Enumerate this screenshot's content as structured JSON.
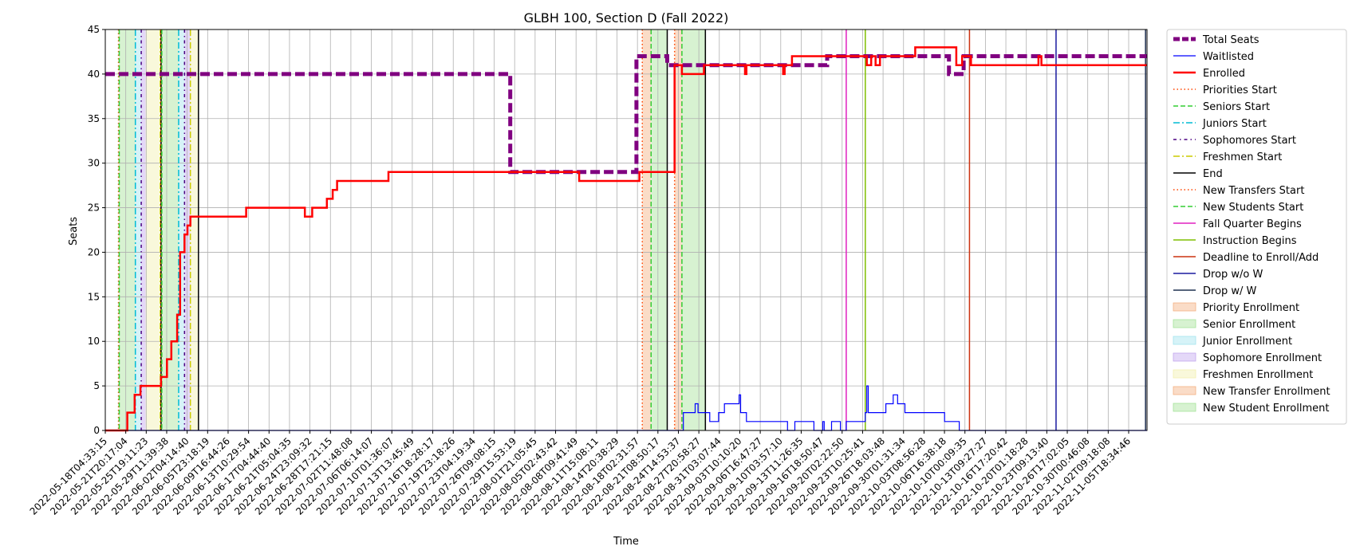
{
  "chart_data": {
    "type": "line",
    "title": "GLBH 100, Section D (Fall 2022)",
    "xlabel": "Time",
    "ylabel": "Seats",
    "ylim": [
      0,
      45
    ],
    "yticks": [
      0,
      5,
      10,
      15,
      20,
      25,
      30,
      35,
      40,
      45
    ],
    "xlim": [
      "2022-05-18T04:33:15",
      "2022-11-08T04:00:00"
    ],
    "grid": true,
    "legend_position": "outside-right",
    "xtick_labels": [
      "2022-05-18T04:33:15",
      "2022-05-21T20:17:04",
      "2022-05-25T19:11:23",
      "2022-05-29T11:39:38",
      "2022-06-02T04:14:40",
      "2022-06-05T23:18:19",
      "2022-06-09T16:44:26",
      "2022-06-13T10:29:54",
      "2022-06-17T04:44:40",
      "2022-06-21T05:04:35",
      "2022-06-24T23:09:32",
      "2022-06-28T17:21:15",
      "2022-07-02T11:48:08",
      "2022-07-06T06:14:07",
      "2022-07-10T01:36:07",
      "2022-07-13T13:45:49",
      "2022-07-16T18:28:17",
      "2022-07-19T23:18:26",
      "2022-07-23T04:19:34",
      "2022-07-26T09:08:15",
      "2022-07-29T15:53:19",
      "2022-08-01T21:05:45",
      "2022-08-05T02:43:42",
      "2022-08-08T09:41:49",
      "2022-08-11T15:08:11",
      "2022-08-14T20:38:29",
      "2022-08-18T02:31:57",
      "2022-08-21T08:50:17",
      "2022-08-24T14:53:37",
      "2022-08-27T20:58:27",
      "2022-08-31T03:07:44",
      "2022-09-03T10:10:20",
      "2022-09-06T16:47:27",
      "2022-09-10T03:57:10",
      "2022-09-13T11:26:35",
      "2022-09-16T18:50:47",
      "2022-09-20T02:22:50",
      "2022-09-23T10:25:41",
      "2022-09-26T18:03:48",
      "2022-09-30T01:31:34",
      "2022-10-03T08:56:28",
      "2022-10-06T16:38:18",
      "2022-10-10T00:09:35",
      "2022-10-13T09:27:27",
      "2022-10-16T17:20:42",
      "2022-10-20T01:18:28",
      "2022-10-23T09:13:40",
      "2022-10-26T17:02:05",
      "2022-10-30T00:46:08",
      "2022-11-02T09:18:08",
      "2022-11-05T18:34:46"
    ],
    "series": [
      {
        "name": "Total Seats",
        "color": "#800080",
        "style": "dashed-thick",
        "points": [
          [
            0,
            40
          ],
          [
            27.6,
            40
          ],
          [
            27.6,
            29
          ],
          [
            36.2,
            29
          ],
          [
            36.2,
            42
          ],
          [
            38.3,
            42
          ],
          [
            38.3,
            41
          ],
          [
            49.2,
            41
          ],
          [
            49.2,
            42
          ],
          [
            57.5,
            42
          ],
          [
            57.5,
            40
          ],
          [
            58.5,
            40
          ],
          [
            58.5,
            42
          ],
          [
            71,
            42
          ]
        ]
      },
      {
        "name": "Waitlisted",
        "color": "#0000ff",
        "style": "solid-thin",
        "points": [
          [
            0,
            0
          ],
          [
            39.4,
            0
          ],
          [
            39.4,
            2
          ],
          [
            40.2,
            2
          ],
          [
            40.2,
            3
          ],
          [
            40.4,
            3
          ],
          [
            40.4,
            2
          ],
          [
            41.2,
            2
          ],
          [
            41.2,
            1
          ],
          [
            41.8,
            1
          ],
          [
            41.8,
            2
          ],
          [
            42.2,
            2
          ],
          [
            42.2,
            3
          ],
          [
            43.2,
            3
          ],
          [
            43.2,
            4
          ],
          [
            43.3,
            4
          ],
          [
            43.3,
            2
          ],
          [
            43.7,
            2
          ],
          [
            43.7,
            1
          ],
          [
            46.5,
            1
          ],
          [
            46.5,
            0
          ],
          [
            47,
            0
          ],
          [
            47,
            1
          ],
          [
            48.3,
            1
          ],
          [
            48.3,
            0
          ],
          [
            48.9,
            0
          ],
          [
            48.9,
            1
          ],
          [
            49,
            1
          ],
          [
            49,
            0
          ],
          [
            49.5,
            0
          ],
          [
            49.5,
            1
          ],
          [
            50.1,
            1
          ],
          [
            50.1,
            0
          ],
          [
            50.5,
            0
          ],
          [
            50.5,
            1
          ],
          [
            51.8,
            1
          ],
          [
            51.8,
            2
          ],
          [
            51.9,
            2
          ],
          [
            51.9,
            5
          ],
          [
            52.0,
            5
          ],
          [
            52.0,
            2
          ],
          [
            53.2,
            2
          ],
          [
            53.2,
            3
          ],
          [
            53.7,
            3
          ],
          [
            53.7,
            4
          ],
          [
            54,
            4
          ],
          [
            54,
            3
          ],
          [
            54.5,
            3
          ],
          [
            54.5,
            2
          ],
          [
            57.2,
            2
          ],
          [
            57.2,
            1
          ],
          [
            58.2,
            1
          ],
          [
            58.2,
            0
          ],
          [
            71,
            0
          ]
        ]
      },
      {
        "name": "Enrolled",
        "color": "#ff0000",
        "style": "solid-thick",
        "points": [
          [
            0,
            0
          ],
          [
            1.5,
            0
          ],
          [
            1.5,
            2
          ],
          [
            2.0,
            2
          ],
          [
            2.0,
            4
          ],
          [
            2.4,
            4
          ],
          [
            2.4,
            5
          ],
          [
            3.8,
            5
          ],
          [
            3.8,
            6
          ],
          [
            4.2,
            6
          ],
          [
            4.2,
            8
          ],
          [
            4.5,
            8
          ],
          [
            4.5,
            10
          ],
          [
            4.9,
            10
          ],
          [
            4.9,
            13
          ],
          [
            5.1,
            13
          ],
          [
            5.1,
            20
          ],
          [
            5.4,
            20
          ],
          [
            5.4,
            22
          ],
          [
            5.6,
            22
          ],
          [
            5.6,
            23
          ],
          [
            5.8,
            23
          ],
          [
            5.8,
            24
          ],
          [
            9.6,
            24
          ],
          [
            9.6,
            25
          ],
          [
            13.6,
            25
          ],
          [
            13.6,
            24
          ],
          [
            14.1,
            24
          ],
          [
            14.1,
            25
          ],
          [
            15.1,
            25
          ],
          [
            15.1,
            26
          ],
          [
            15.5,
            26
          ],
          [
            15.5,
            27
          ],
          [
            15.8,
            27
          ],
          [
            15.8,
            28
          ],
          [
            19.3,
            28
          ],
          [
            19.3,
            29
          ],
          [
            32.3,
            29
          ],
          [
            32.3,
            28
          ],
          [
            36.4,
            28
          ],
          [
            36.4,
            29
          ],
          [
            38.8,
            29
          ],
          [
            38.8,
            41
          ],
          [
            39.3,
            41
          ],
          [
            39.3,
            40
          ],
          [
            40.8,
            40
          ],
          [
            40.8,
            41
          ],
          [
            43.6,
            41
          ],
          [
            43.6,
            40
          ],
          [
            43.7,
            40
          ],
          [
            43.7,
            41
          ],
          [
            46.2,
            41
          ],
          [
            46.2,
            40
          ],
          [
            46.3,
            40
          ],
          [
            46.3,
            41
          ],
          [
            46.8,
            41
          ],
          [
            46.8,
            42
          ],
          [
            51.9,
            42
          ],
          [
            51.9,
            41
          ],
          [
            52.2,
            41
          ],
          [
            52.2,
            42
          ],
          [
            52.5,
            42
          ],
          [
            52.5,
            41
          ],
          [
            52.8,
            41
          ],
          [
            52.8,
            42
          ],
          [
            55.2,
            42
          ],
          [
            55.2,
            43
          ],
          [
            58.0,
            43
          ],
          [
            58.0,
            41
          ],
          [
            58.4,
            41
          ],
          [
            58.4,
            42
          ],
          [
            59.0,
            42
          ],
          [
            59.0,
            41
          ],
          [
            63.6,
            41
          ],
          [
            63.6,
            42
          ],
          [
            63.8,
            42
          ],
          [
            63.8,
            41
          ],
          [
            71,
            41
          ]
        ]
      }
    ],
    "vertical_markers": [
      {
        "name": "Priorities Start",
        "x": 0.9,
        "color": "#ff4500",
        "style": "dotted"
      },
      {
        "name": "Seniors Start",
        "x": 0.95,
        "color": "#32cd32",
        "style": "dashed"
      },
      {
        "name": "Juniors Start",
        "x": 2.05,
        "color": "#00bcd4",
        "style": "dashdot"
      },
      {
        "name": "Sophomores Start",
        "x": 2.45,
        "color": "#4b0082",
        "style": "dashdot2"
      },
      {
        "name": "Freshmen Start",
        "x": 3.75,
        "color": "#cccc00",
        "style": "dashdot"
      },
      {
        "name": "End",
        "x": 3.8,
        "color": "#000000",
        "style": "solid"
      },
      {
        "name": "Priorities Start",
        "x": 3.8,
        "color": "#ff4500",
        "style": "dotted"
      },
      {
        "name": "Seniors Start",
        "x": 3.85,
        "color": "#32cd32",
        "style": "dashed"
      },
      {
        "name": "Juniors Start",
        "x": 5.0,
        "color": "#00bcd4",
        "style": "dashdot"
      },
      {
        "name": "Sophomores Start",
        "x": 5.4,
        "color": "#4b0082",
        "style": "dashdot2"
      },
      {
        "name": "Freshmen Start",
        "x": 5.8,
        "color": "#cccc00",
        "style": "dashdot"
      },
      {
        "name": "End",
        "x": 6.35,
        "color": "#000000",
        "style": "solid"
      },
      {
        "name": "New Transfers Start",
        "x": 36.6,
        "color": "#ff4500",
        "style": "dotted"
      },
      {
        "name": "New Students Start",
        "x": 37.2,
        "color": "#32cd32",
        "style": "dashed"
      },
      {
        "name": "End",
        "x": 38.3,
        "color": "#000000",
        "style": "solid"
      },
      {
        "name": "New Transfers Start",
        "x": 38.8,
        "color": "#ff4500",
        "style": "dotted"
      },
      {
        "name": "New Students Start",
        "x": 39.3,
        "color": "#32cd32",
        "style": "dashed"
      },
      {
        "name": "End",
        "x": 40.9,
        "color": "#000000",
        "style": "solid"
      },
      {
        "name": "Fall Quarter Begins",
        "x": 50.5,
        "color": "#e020c0",
        "style": "solid"
      },
      {
        "name": "Instruction Begins",
        "x": 51.8,
        "color": "#7fbf00",
        "style": "solid"
      },
      {
        "name": "Deadline to Enroll/Add",
        "x": 58.9,
        "color": "#cc3311",
        "style": "solid"
      },
      {
        "name": "Drop w/o W",
        "x": 64.8,
        "color": "#1a1a9f",
        "style": "solid"
      },
      {
        "name": "Drop w/ W",
        "x": 70.9,
        "color": "#1f3050",
        "style": "solid"
      }
    ],
    "shaded_regions": [
      {
        "name": "Priority Enrollment",
        "x0": 0.9,
        "x1": 0.95,
        "color": "#f4b183"
      },
      {
        "name": "Senior Enrollment",
        "x0": 0.95,
        "x1": 2.05,
        "color": "#a6e39a"
      },
      {
        "name": "Junior Enrollment",
        "x0": 2.05,
        "x1": 2.45,
        "color": "#a3e4ef"
      },
      {
        "name": "Sophomore Enrollment",
        "x0": 2.45,
        "x1": 2.75,
        "color": "#c3a8ef"
      },
      {
        "name": "Freshmen Enrollment",
        "x0": 2.75,
        "x1": 3.8,
        "color": "#f2f0b0"
      },
      {
        "name": "Priority Enrollment",
        "x0": 3.8,
        "x1": 3.85,
        "color": "#f4b183"
      },
      {
        "name": "Senior Enrollment",
        "x0": 3.85,
        "x1": 5.0,
        "color": "#a6e39a"
      },
      {
        "name": "Junior Enrollment",
        "x0": 5.0,
        "x1": 5.4,
        "color": "#a3e4ef"
      },
      {
        "name": "Sophomore Enrollment",
        "x0": 5.4,
        "x1": 5.8,
        "color": "#c3a8ef"
      },
      {
        "name": "Freshmen Enrollment",
        "x0": 5.8,
        "x1": 6.35,
        "color": "#f2f0b0"
      },
      {
        "name": "New Transfer Enrollment",
        "x0": 36.6,
        "x1": 37.2,
        "color": "#f4b183"
      },
      {
        "name": "New Student Enrollment",
        "x0": 37.2,
        "x1": 38.3,
        "color": "#a6e39a"
      },
      {
        "name": "New Transfer Enrollment",
        "x0": 38.8,
        "x1": 39.3,
        "color": "#f4b183"
      },
      {
        "name": "New Student Enrollment",
        "x0": 39.3,
        "x1": 40.9,
        "color": "#a6e39a"
      }
    ],
    "legend": [
      {
        "label": "Total Seats",
        "kind": "line",
        "color": "#800080",
        "style": "dashed-thick"
      },
      {
        "label": "Waitlisted",
        "kind": "line",
        "color": "#0000ff",
        "style": "solid-thin"
      },
      {
        "label": "Enrolled",
        "kind": "line",
        "color": "#ff0000",
        "style": "solid-thick"
      },
      {
        "label": "Priorities Start",
        "kind": "line",
        "color": "#ff4500",
        "style": "dotted"
      },
      {
        "label": "Seniors Start",
        "kind": "line",
        "color": "#32cd32",
        "style": "dashed"
      },
      {
        "label": "Juniors Start",
        "kind": "line",
        "color": "#00bcd4",
        "style": "dashdot"
      },
      {
        "label": "Sophomores Start",
        "kind": "line",
        "color": "#4b0082",
        "style": "dashdot2"
      },
      {
        "label": "Freshmen Start",
        "kind": "line",
        "color": "#cccc00",
        "style": "dashdot"
      },
      {
        "label": "End",
        "kind": "line",
        "color": "#000000",
        "style": "solid"
      },
      {
        "label": "New Transfers Start",
        "kind": "line",
        "color": "#ff4500",
        "style": "dotted"
      },
      {
        "label": "New Students Start",
        "kind": "line",
        "color": "#32cd32",
        "style": "dashed"
      },
      {
        "label": "Fall Quarter Begins",
        "kind": "line",
        "color": "#e020c0",
        "style": "solid"
      },
      {
        "label": "Instruction Begins",
        "kind": "line",
        "color": "#7fbf00",
        "style": "solid"
      },
      {
        "label": "Deadline to Enroll/Add",
        "kind": "line",
        "color": "#cc3311",
        "style": "solid"
      },
      {
        "label": "Drop w/o W",
        "kind": "line",
        "color": "#1a1a9f",
        "style": "solid"
      },
      {
        "label": "Drop w/ W",
        "kind": "line",
        "color": "#1f3050",
        "style": "solid"
      },
      {
        "label": "Priority Enrollment",
        "kind": "patch",
        "color": "#f4b183"
      },
      {
        "label": "Senior Enrollment",
        "kind": "patch",
        "color": "#a6e39a"
      },
      {
        "label": "Junior Enrollment",
        "kind": "patch",
        "color": "#a3e4ef"
      },
      {
        "label": "Sophomore Enrollment",
        "kind": "patch",
        "color": "#c3a8ef"
      },
      {
        "label": "Freshmen Enrollment",
        "kind": "patch",
        "color": "#f2f0b0"
      },
      {
        "label": "New Transfer Enrollment",
        "kind": "patch",
        "color": "#f4b183"
      },
      {
        "label": "New Student Enrollment",
        "kind": "patch",
        "color": "#a6e39a"
      }
    ]
  }
}
